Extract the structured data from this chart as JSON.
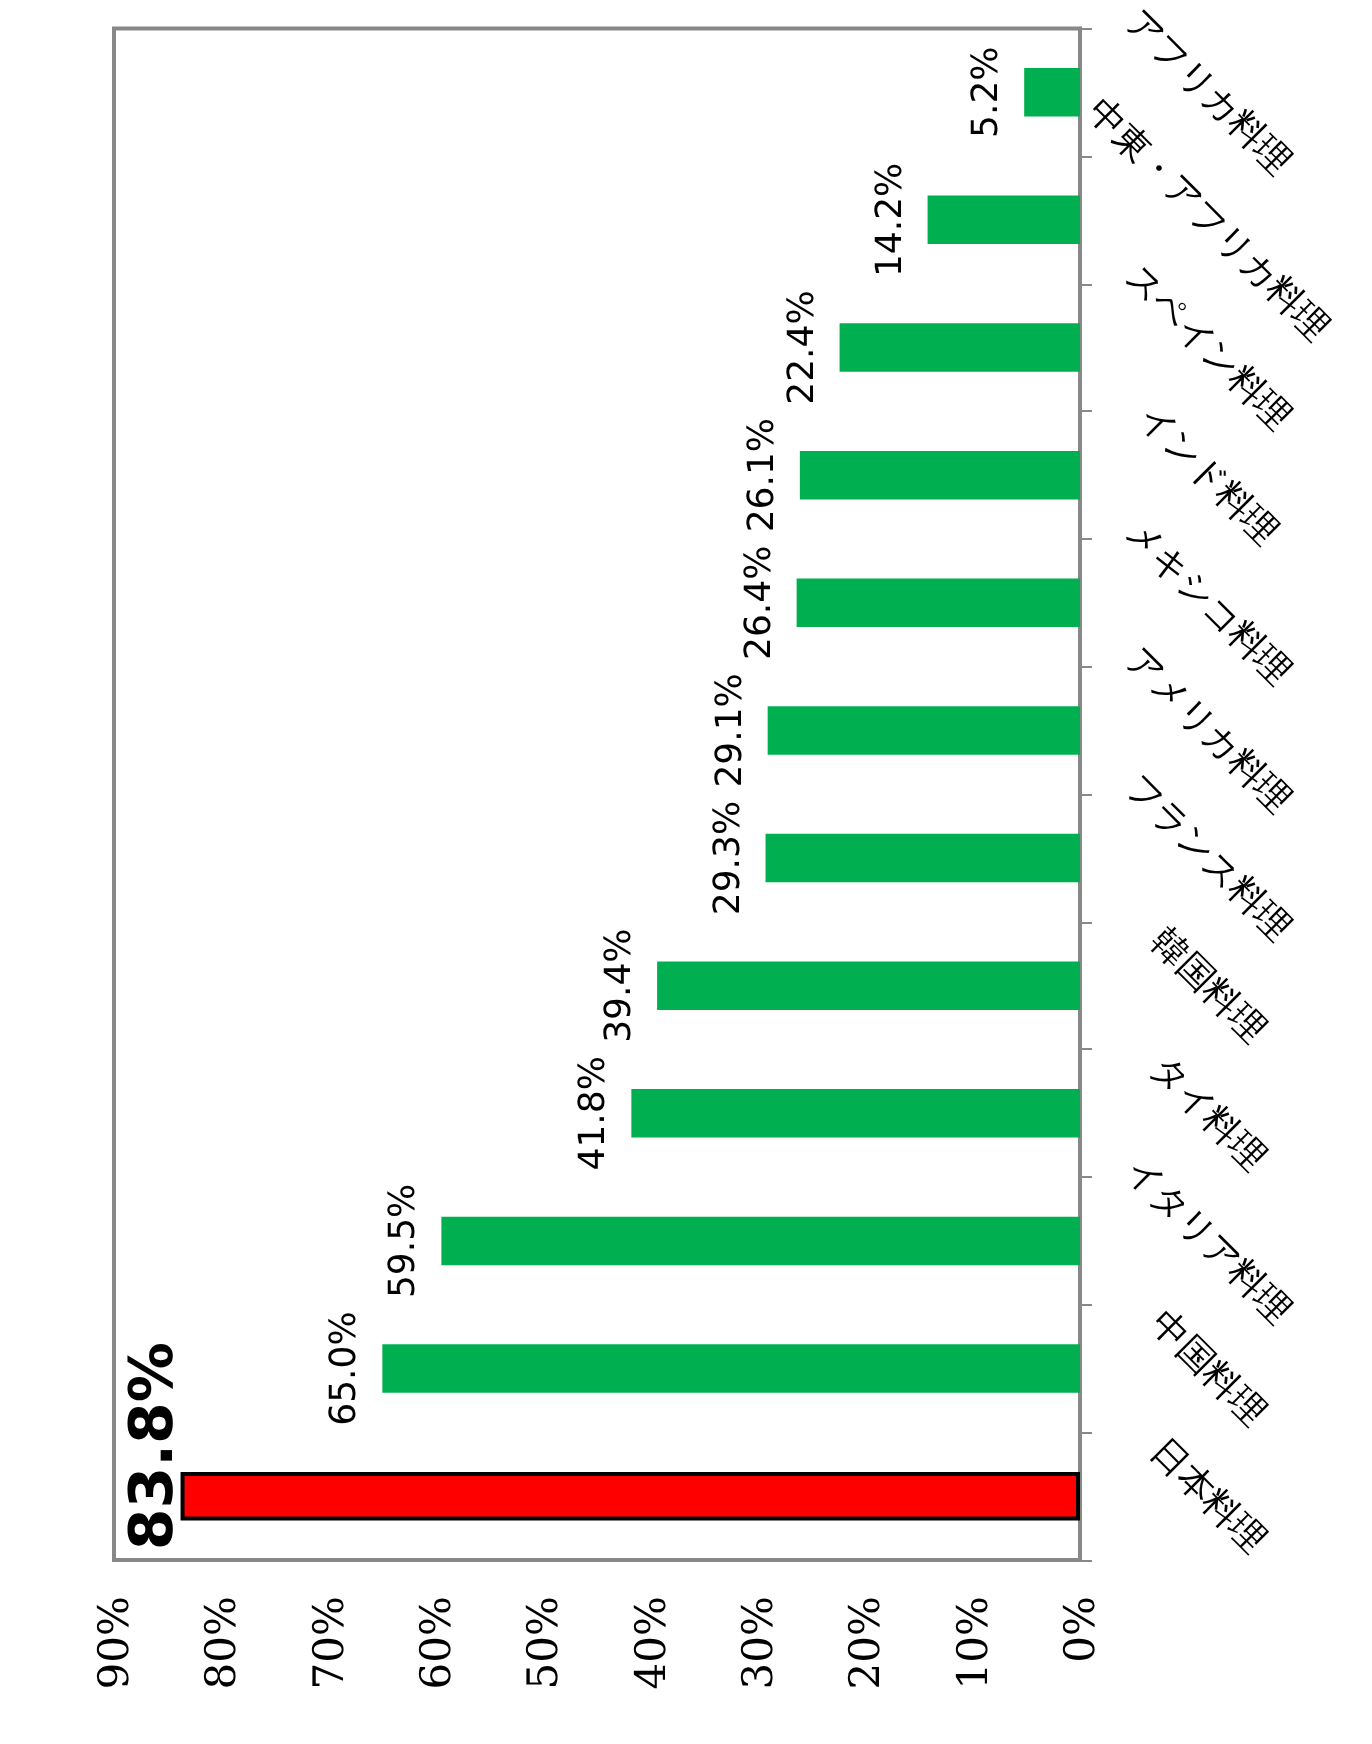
{
  "chart_data": {
    "type": "bar",
    "orientation": "horizontal",
    "categories": [
      "アフリカ料理",
      "中東・アフリカ料理",
      "スペイン料理",
      "インド料理",
      "メキシコ料理",
      "アメリカ料理",
      "フランス料理",
      "韓国料理",
      "タイ料理",
      "イタリア料理",
      "中国料理",
      "日本料理"
    ],
    "values": [
      5.2,
      14.2,
      22.4,
      26.1,
      26.4,
      29.1,
      29.3,
      39.4,
      41.8,
      59.5,
      65.0,
      83.8
    ],
    "colors": [
      "#00b050",
      "#00b050",
      "#00b050",
      "#00b050",
      "#00b050",
      "#00b050",
      "#00b050",
      "#00b050",
      "#00b050",
      "#00b050",
      "#00b050",
      "#ff0000"
    ],
    "value_labels": [
      "5.2%",
      "14.2%",
      "22.4%",
      "26.1%",
      "26.4%",
      "29.1%",
      "29.3%",
      "39.4%",
      "41.8%",
      "59.5%",
      "65.0%",
      "83.8%"
    ],
    "xlim": [
      90,
      0
    ],
    "xticks": [
      {
        "value": 90,
        "label": "90%"
      },
      {
        "value": 80,
        "label": "80%"
      },
      {
        "value": 70,
        "label": "70%"
      },
      {
        "value": 60,
        "label": "60%"
      },
      {
        "value": 50,
        "label": "50%"
      },
      {
        "value": 40,
        "label": "40%"
      },
      {
        "value": 30,
        "label": "30%"
      },
      {
        "value": 20,
        "label": "20%"
      },
      {
        "value": 10,
        "label": "10%"
      },
      {
        "value": 0,
        "label": "0%"
      }
    ],
    "grid": false
  }
}
